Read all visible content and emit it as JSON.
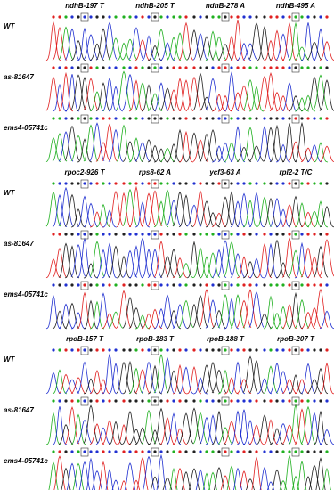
{
  "panels": [
    {
      "columns": [
        "ndhB-197 T",
        "ndhB-205 T",
        "ndhB-278 A",
        "ndhB-495 A"
      ],
      "rows": [
        "WT",
        "as-81647",
        "ems4-05741c"
      ]
    },
    {
      "columns": [
        "rpoc2-926 T",
        "rps8-62 A",
        "ycf3-63 A",
        "rpl2-2 T/C"
      ],
      "rows": [
        "WT",
        "as-81647",
        "ems4-05741c"
      ]
    },
    {
      "columns": [
        "rpoB-157 T",
        "rpoB-183 T",
        "rpoB-188 T",
        "rpoB-207 T"
      ],
      "rows": [
        "WT",
        "as-81647",
        "ems4-05741c"
      ]
    }
  ]
}
